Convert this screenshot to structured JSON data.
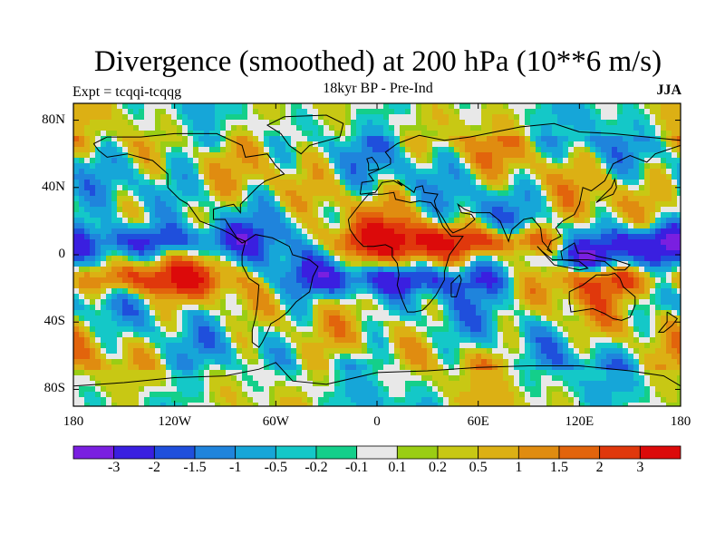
{
  "title": "Divergence (smoothed) at 200 hPa (10**6 m/s)",
  "subtitle": "18kyr BP - Pre-Ind",
  "experiment": "Expt = tcqqi-tcqqg",
  "season": "JJA",
  "lat_ticks": [
    "80N",
    "40N",
    "0",
    "40S",
    "80S"
  ],
  "lat_values": [
    80,
    40,
    0,
    -40,
    -80
  ],
  "lon_ticks": [
    "180",
    "120W",
    "60W",
    "0",
    "60E",
    "120E",
    "180"
  ],
  "lon_values": [
    -180,
    -120,
    -60,
    0,
    60,
    120,
    180
  ],
  "colorbar": {
    "labels": [
      "-3",
      "-2",
      "-1.5",
      "-1",
      "-0.5",
      "-0.2",
      "-0.1",
      "0.1",
      "0.2",
      "0.5",
      "1",
      "1.5",
      "2",
      "3"
    ],
    "levels": [
      -3,
      -2,
      -1.5,
      -1,
      -0.5,
      -0.2,
      -0.1,
      0.1,
      0.2,
      0.5,
      1,
      1.5,
      2,
      3
    ],
    "colors": [
      "#7a1fe0",
      "#3a1fe0",
      "#1f4fdc",
      "#1f84dc",
      "#16a6d8",
      "#14c8c8",
      "#14cf8a",
      "#e8e8e8",
      "#9acd14",
      "#c8c814",
      "#dcb014",
      "#e08c10",
      "#e2640c",
      "#e0380c",
      "#dc0a0a"
    ]
  }
}
